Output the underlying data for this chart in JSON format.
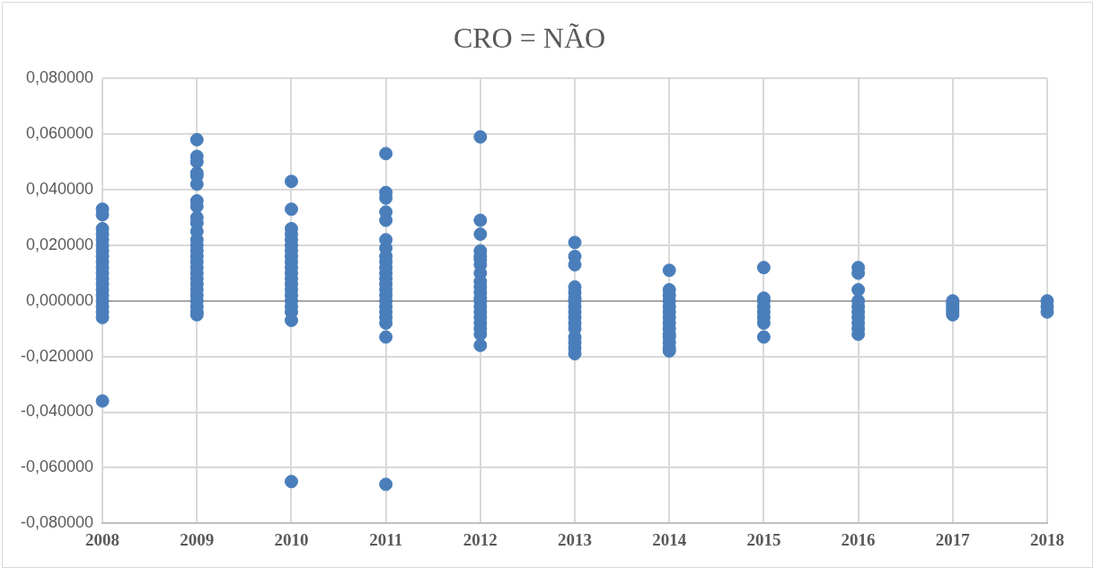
{
  "chart_data": {
    "type": "scatter",
    "title": "CRO = NÃO",
    "x": [
      2008,
      2008,
      2008,
      2008,
      2008,
      2008,
      2008,
      2008,
      2008,
      2008,
      2008,
      2008,
      2008,
      2008,
      2008,
      2008,
      2008,
      2008,
      2008,
      2008,
      2009,
      2009,
      2009,
      2009,
      2009,
      2009,
      2009,
      2009,
      2009,
      2009,
      2009,
      2009,
      2009,
      2009,
      2009,
      2009,
      2009,
      2009,
      2009,
      2009,
      2009,
      2009,
      2009,
      2009,
      2009,
      2009,
      2010,
      2010,
      2010,
      2010,
      2010,
      2010,
      2010,
      2010,
      2010,
      2010,
      2010,
      2010,
      2010,
      2010,
      2010,
      2010,
      2010,
      2010,
      2010,
      2010,
      2011,
      2011,
      2011,
      2011,
      2011,
      2011,
      2011,
      2011,
      2011,
      2011,
      2011,
      2011,
      2011,
      2011,
      2011,
      2011,
      2011,
      2011,
      2011,
      2011,
      2011,
      2011,
      2012,
      2012,
      2012,
      2012,
      2012,
      2012,
      2012,
      2012,
      2012,
      2012,
      2012,
      2012,
      2012,
      2012,
      2012,
      2012,
      2012,
      2012,
      2012,
      2012,
      2013,
      2013,
      2013,
      2013,
      2013,
      2013,
      2013,
      2013,
      2013,
      2013,
      2013,
      2013,
      2013,
      2013,
      2013,
      2013,
      2014,
      2014,
      2014,
      2014,
      2014,
      2014,
      2014,
      2014,
      2014,
      2014,
      2014,
      2014,
      2014,
      2014,
      2015,
      2015,
      2015,
      2015,
      2015,
      2015,
      2015,
      2015,
      2016,
      2016,
      2016,
      2016,
      2016,
      2016,
      2016,
      2016,
      2016,
      2016,
      2017,
      2017,
      2017,
      2017,
      2017,
      2017,
      2018,
      2018,
      2018
    ],
    "values": [
      0.033,
      0.031,
      0.026,
      0.024,
      0.022,
      0.02,
      0.018,
      0.016,
      0.014,
      0.012,
      0.01,
      0.008,
      0.006,
      0.004,
      0.002,
      0,
      -0.002,
      -0.004,
      -0.006,
      -0.036,
      0.058,
      0.052,
      0.05,
      0.046,
      0.045,
      0.042,
      0.036,
      0.034,
      0.03,
      0.028,
      0.025,
      0.022,
      0.02,
      0.018,
      0.016,
      0.014,
      0.012,
      0.01,
      0.008,
      0.006,
      0.004,
      0.002,
      0,
      -0.002,
      -0.004,
      -0.005,
      0.043,
      0.033,
      0.026,
      0.024,
      0.022,
      0.02,
      0.018,
      0.016,
      0.014,
      0.012,
      0.01,
      0.008,
      0.006,
      0.004,
      0.002,
      0,
      -0.002,
      -0.004,
      -0.007,
      -0.065,
      0.053,
      0.039,
      0.037,
      0.032,
      0.029,
      0.022,
      0.019,
      0.016,
      0.014,
      0.012,
      0.01,
      0.008,
      0.006,
      0.004,
      0.002,
      0,
      -0.002,
      -0.004,
      -0.006,
      -0.008,
      -0.013,
      -0.066,
      0.059,
      0.029,
      0.024,
      0.018,
      0.016,
      0.015,
      0.013,
      0.01,
      0.007,
      0.005,
      0.003,
      0.001,
      0,
      -0.002,
      -0.004,
      -0.006,
      -0.008,
      -0.01,
      -0.012,
      -0.016,
      0.021,
      0.016,
      0.013,
      0.005,
      0.003,
      0.001,
      0,
      -0.002,
      -0.004,
      -0.006,
      -0.008,
      -0.01,
      -0.013,
      -0.015,
      -0.017,
      -0.019,
      0.011,
      0.004,
      0.002,
      0,
      -0.002,
      -0.004,
      -0.006,
      -0.008,
      -0.01,
      -0.012,
      -0.013,
      -0.015,
      -0.017,
      -0.018,
      0.012,
      0.001,
      0,
      -0.002,
      -0.004,
      -0.006,
      -0.008,
      -0.013,
      0.012,
      0.01,
      0.004,
      0,
      -0.002,
      -0.004,
      -0.006,
      -0.008,
      -0.01,
      -0.012,
      0,
      -0.001,
      -0.002,
      -0.003,
      -0.004,
      -0.005,
      0,
      -0.002,
      -0.004
    ],
    "color": "#4a7ebb",
    "marker": "circle",
    "xlim": [
      2008,
      2018
    ],
    "xticks": [
      2008,
      2009,
      2010,
      2011,
      2012,
      2013,
      2014,
      2015,
      2016,
      2017,
      2018
    ],
    "ylim": [
      -0.08,
      0.08
    ],
    "yticks": [
      {
        "value": -0.08,
        "label": "-0,080000"
      },
      {
        "value": -0.06,
        "label": "-0,060000"
      },
      {
        "value": -0.04,
        "label": "-0,040000"
      },
      {
        "value": -0.02,
        "label": "-0,020000"
      },
      {
        "value": 0,
        "label": "0,000000"
      },
      {
        "value": 0.02,
        "label": "0,020000"
      },
      {
        "value": 0.04,
        "label": "0,040000"
      },
      {
        "value": 0.06,
        "label": "0,060000"
      },
      {
        "value": 0.08,
        "label": "0,080000"
      }
    ],
    "grid": true,
    "legend": false
  }
}
